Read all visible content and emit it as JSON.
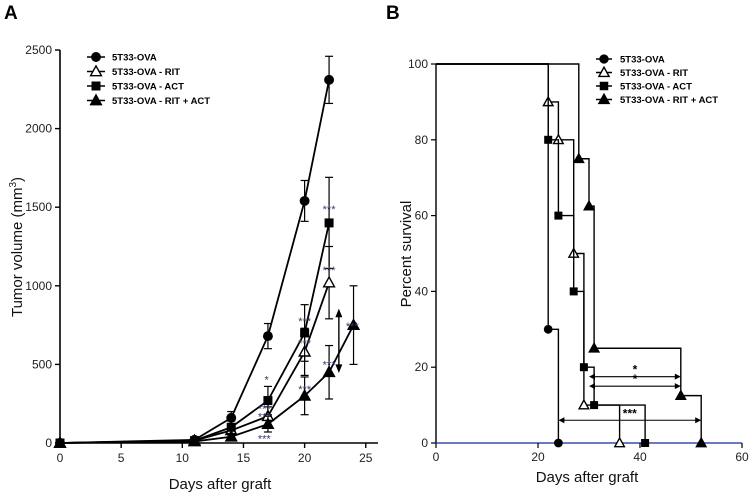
{
  "chart_data": [
    {
      "panel": "A",
      "type": "line",
      "xlabel": "Days after graft",
      "ylabel_main": "Tumor volume (mm",
      "ylabel_sup": "3",
      "ylabel_end": ")",
      "xlim": [
        0,
        26
      ],
      "ylim": [
        0,
        2500
      ],
      "xticks": [
        0,
        5,
        10,
        15,
        20,
        25
      ],
      "yticks": [
        0,
        500,
        1000,
        1500,
        2000,
        2500
      ],
      "series": [
        {
          "name": "5T33-OVA",
          "marker": "circle",
          "x": [
            0,
            11,
            14,
            17,
            20,
            22
          ],
          "y": [
            0,
            20,
            160,
            680,
            1540,
            2310
          ],
          "err": [
            0,
            10,
            40,
            80,
            130,
            150
          ]
        },
        {
          "name": "5T33-OVA - RIT",
          "marker": "triangle-open",
          "x": [
            0,
            11,
            14,
            17,
            20,
            22
          ],
          "y": [
            0,
            15,
            80,
            170,
            580,
            1020
          ],
          "err": [
            0,
            8,
            30,
            60,
            150,
            230
          ]
        },
        {
          "name": "5T33-OVA - ACT",
          "marker": "square",
          "x": [
            0,
            11,
            14,
            17,
            20,
            22
          ],
          "y": [
            0,
            15,
            100,
            270,
            700,
            1400
          ],
          "err": [
            0,
            8,
            40,
            90,
            180,
            290
          ]
        },
        {
          "name": "5T33-OVA - RIT + ACT",
          "marker": "triangle",
          "x": [
            0,
            11,
            14,
            17,
            20,
            22,
            24
          ],
          "y": [
            0,
            10,
            40,
            120,
            300,
            450,
            750
          ],
          "err": [
            0,
            5,
            20,
            50,
            120,
            170,
            250
          ]
        }
      ],
      "annotations": [
        {
          "text": "***",
          "x": 22,
          "y": 1490
        },
        {
          "text": "***",
          "x": 22,
          "y": 1100
        },
        {
          "text": "***",
          "x": 20,
          "y": 775
        },
        {
          "text": "***",
          "x": 20,
          "y": 635
        },
        {
          "text": "***",
          "x": 23.9,
          "y": 745
        },
        {
          "text": "***",
          "x": 22,
          "y": 500
        },
        {
          "text": "***",
          "x": 20,
          "y": 345
        },
        {
          "text": "*",
          "x": 16.9,
          "y": 405
        },
        {
          "text": "***",
          "x": 16.7,
          "y": 220
        },
        {
          "text": "***",
          "x": 16.7,
          "y": 170
        },
        {
          "text": "***",
          "x": 16.7,
          "y": 30
        }
      ]
    },
    {
      "panel": "B",
      "type": "line",
      "xlabel": "Days after graft",
      "ylabel": "Percent survival",
      "xlim": [
        0,
        60
      ],
      "ylim": [
        0,
        100
      ],
      "xticks": [
        0,
        20,
        40,
        60
      ],
      "yticks": [
        0,
        20,
        40,
        60,
        80,
        100
      ],
      "series": [
        {
          "name": "5T33-OVA",
          "marker": "circle",
          "x": [
            0,
            22,
            24
          ],
          "y": [
            100,
            30,
            0
          ]
        },
        {
          "name": "5T33-OVA - RIT",
          "marker": "triangle-open",
          "x": [
            0,
            22,
            24,
            27,
            29,
            36
          ],
          "y": [
            100,
            90,
            80,
            50,
            10,
            0
          ]
        },
        {
          "name": "5T33-OVA - ACT",
          "marker": "square",
          "x": [
            0,
            22,
            24,
            27,
            29,
            31,
            41
          ],
          "y": [
            100,
            80,
            60,
            40,
            20,
            10,
            0
          ]
        },
        {
          "name": "5T33-OVA - RIT + ACT",
          "marker": "triangle",
          "x": [
            0,
            28,
            30,
            31,
            48,
            52
          ],
          "y": [
            100,
            75,
            62.5,
            25,
            12.5,
            0
          ]
        }
      ],
      "annotations": [
        {
          "text": "*",
          "x1": 30,
          "x2": 48,
          "y": 17.5
        },
        {
          "text": "*",
          "x1": 30,
          "x2": 48,
          "y": 15
        },
        {
          "text": "***",
          "x1": 24,
          "x2": 52,
          "y": 6
        }
      ]
    }
  ]
}
